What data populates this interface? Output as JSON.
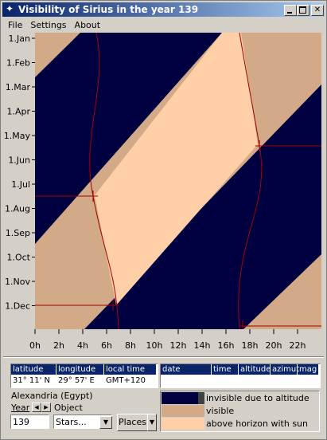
{
  "window": {
    "title": "Visibility of Sirius in the year 139"
  },
  "menu": [
    "File",
    "Settings",
    "About"
  ],
  "chart": {
    "y_labels": [
      "1.Jan",
      "1.Feb",
      "1.Mar",
      "1.Apr",
      "1.May",
      "1.Jun",
      "1.Jul",
      "1.Aug",
      "1.Sep",
      "1.Oct",
      "1.Nov",
      "1.Dec"
    ],
    "x_labels": [
      "0h",
      "2h",
      "4h",
      "6h",
      "8h",
      "10h",
      "12h",
      "14h",
      "16h",
      "18h",
      "20h",
      "22h"
    ]
  },
  "location_table": {
    "headers": [
      "latitude",
      "longitude",
      "local time"
    ],
    "row": [
      "31° 11' N",
      "29° 57' E",
      "GMT+120"
    ]
  },
  "event_table": {
    "headers": [
      "date",
      "time",
      "altitude",
      "azimut",
      "mag"
    ]
  },
  "location_name": "Alexandria (Egypt)",
  "year_label": "Year",
  "object_label": "Object",
  "year_value": "139",
  "object_value": "Stars...",
  "places_button": "Places",
  "legend": [
    "invisible due to altitude",
    "visible",
    "above horizon with sun"
  ]
}
